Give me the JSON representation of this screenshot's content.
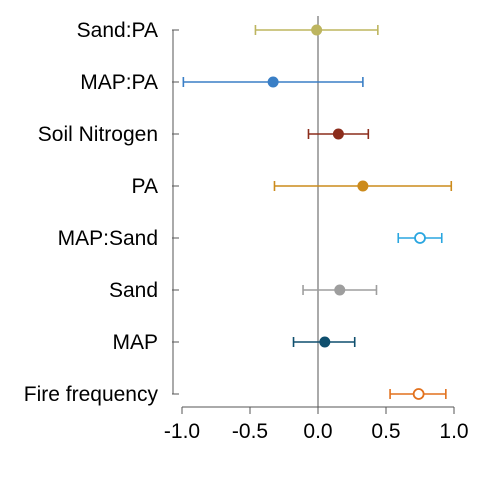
{
  "chart_data": {
    "type": "scatter",
    "subtype": "coefficient-plot-with-error-bars",
    "title": "",
    "xlabel": "",
    "ylabel": "",
    "xlim": [
      -1.0,
      1.0
    ],
    "x_ticks": [
      -1.0,
      -0.5,
      0.0,
      0.5,
      1.0
    ],
    "x_tick_labels": [
      "-1.0",
      "-0.5",
      "0.0",
      "0.5",
      "1.0"
    ],
    "reference_line": 0.0,
    "grid": false,
    "legend": "none",
    "points": [
      {
        "label": "Sand:PA",
        "estimate": -0.01,
        "lower": -0.46,
        "upper": 0.44,
        "color": "#bdb55f",
        "filled": true
      },
      {
        "label": "MAP:PA",
        "estimate": -0.33,
        "lower": -0.99,
        "upper": 0.33,
        "color": "#3a7fc6",
        "filled": true
      },
      {
        "label": "Soil Nitrogen",
        "estimate": 0.15,
        "lower": -0.07,
        "upper": 0.37,
        "color": "#8c2d1c",
        "filled": true
      },
      {
        "label": "PA",
        "estimate": 0.33,
        "lower": -0.32,
        "upper": 0.98,
        "color": "#cc8b1c",
        "filled": true
      },
      {
        "label": "MAP:Sand",
        "estimate": 0.75,
        "lower": 0.59,
        "upper": 0.91,
        "color": "#2aa6e0",
        "filled": false
      },
      {
        "label": "Sand",
        "estimate": 0.16,
        "lower": -0.11,
        "upper": 0.43,
        "color": "#9e9e9e",
        "filled": true
      },
      {
        "label": "MAP",
        "estimate": 0.05,
        "lower": -0.18,
        "upper": 0.27,
        "color": "#0f4f6e",
        "filled": true
      },
      {
        "label": "Fire frequency",
        "estimate": 0.74,
        "lower": 0.53,
        "upper": 0.94,
        "color": "#e2711d",
        "filled": false
      }
    ]
  }
}
